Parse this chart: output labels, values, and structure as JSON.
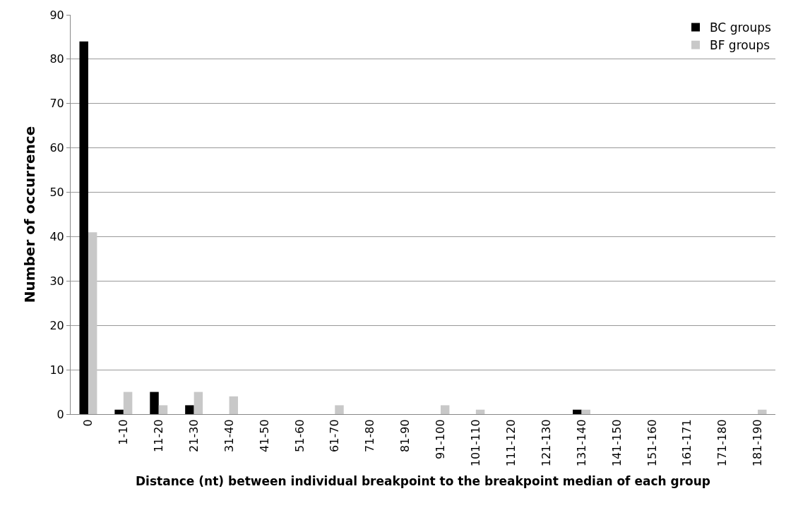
{
  "chart_data": {
    "type": "bar",
    "xlabel": "Distance (nt) between individual breakpoint to the breakpoint median of each group",
    "ylabel": "Number of occurrence",
    "categories": [
      "0",
      "1-10",
      "11-20",
      "21-30",
      "31-40",
      "41-50",
      "51-60",
      "61-70",
      "71-80",
      "81-90",
      "91-100",
      "101-110",
      "111-120",
      "121-130",
      "131-140",
      "141-150",
      "151-160",
      "161-171",
      "171-180",
      "181-190"
    ],
    "series": [
      {
        "name": "BC groups",
        "color": "#000000",
        "values": [
          84,
          1,
          5,
          2,
          0,
          0,
          0,
          0,
          0,
          0,
          0,
          0,
          0,
          0,
          1,
          0,
          0,
          0,
          0,
          0
        ]
      },
      {
        "name": "BF groups",
        "color": "#c8c8c8",
        "values": [
          41,
          5,
          2,
          5,
          4,
          0,
          0,
          2,
          0,
          0,
          2,
          1,
          0,
          0,
          1,
          0,
          0,
          0,
          0,
          1
        ]
      }
    ],
    "ylim": [
      0,
      90
    ],
    "yticks": [
      0,
      10,
      20,
      30,
      40,
      50,
      60,
      70,
      80,
      90
    ],
    "grid": "y",
    "legend": "top right"
  }
}
